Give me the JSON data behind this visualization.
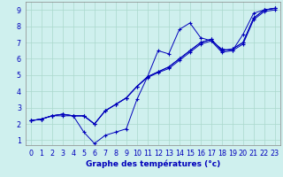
{
  "xlabel": "Graphe des températures (°c)",
  "background_color": "#cff0ee",
  "grid_color": "#aad8cc",
  "line_color": "#0000bb",
  "marker": "+",
  "xlim": [
    -0.5,
    23.5
  ],
  "ylim": [
    0.7,
    9.5
  ],
  "xticks": [
    0,
    1,
    2,
    3,
    4,
    5,
    6,
    7,
    8,
    9,
    10,
    11,
    12,
    13,
    14,
    15,
    16,
    17,
    18,
    19,
    20,
    21,
    22,
    23
  ],
  "yticks": [
    1,
    2,
    3,
    4,
    5,
    6,
    7,
    8,
    9
  ],
  "series": [
    [
      2.2,
      2.3,
      2.5,
      2.5,
      2.5,
      1.5,
      0.8,
      1.3,
      1.5,
      1.7,
      3.5,
      4.9,
      6.5,
      6.3,
      7.8,
      8.2,
      7.3,
      7.1,
      6.6,
      6.5,
      7.5,
      8.8,
      9.0,
      9.1
    ],
    [
      2.2,
      2.3,
      2.5,
      2.6,
      2.5,
      2.5,
      2.0,
      2.8,
      3.2,
      3.6,
      4.3,
      4.9,
      5.2,
      5.5,
      6.0,
      6.5,
      7.0,
      7.2,
      6.5,
      6.6,
      7.0,
      8.5,
      9.0,
      9.1
    ],
    [
      2.2,
      2.3,
      2.5,
      2.6,
      2.5,
      2.5,
      2.0,
      2.8,
      3.2,
      3.6,
      4.3,
      4.9,
      5.2,
      5.5,
      6.0,
      6.5,
      7.0,
      7.2,
      6.5,
      6.6,
      7.0,
      8.5,
      9.0,
      9.1
    ],
    [
      2.2,
      2.3,
      2.5,
      2.6,
      2.5,
      2.5,
      2.0,
      2.8,
      3.2,
      3.6,
      4.3,
      4.85,
      5.15,
      5.4,
      5.9,
      6.4,
      6.9,
      7.1,
      6.4,
      6.5,
      6.9,
      8.4,
      8.9,
      9.0
    ]
  ],
  "tick_fontsize": 5.8,
  "xlabel_fontsize": 6.5
}
